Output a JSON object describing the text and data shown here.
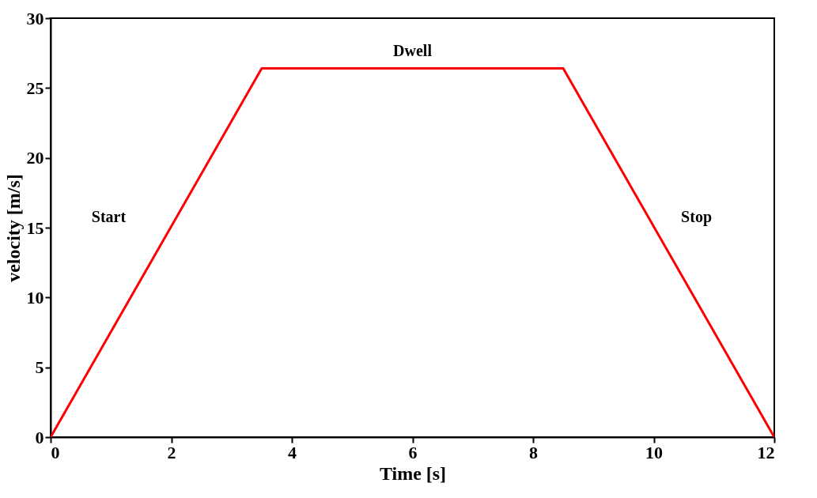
{
  "chart_data": {
    "type": "line",
    "xlabel": "Time  [s]",
    "ylabel": "velocity  [m/s]",
    "x": [
      0,
      3.5,
      8.5,
      12
    ],
    "series": [
      {
        "color": "#ff0000",
        "values": [
          0,
          26.4,
          26.4,
          0
        ]
      }
    ],
    "xlim": [
      0,
      12
    ],
    "xticks": [
      0,
      2,
      4,
      6,
      8,
      10,
      12
    ],
    "ylim": [
      0,
      30
    ],
    "yticks": [
      0,
      5,
      10,
      15,
      20,
      25,
      30
    ],
    "grid": false,
    "marker": "none",
    "line_style": "solid",
    "annotations": [
      "Start",
      "Dwell",
      "Stop"
    ]
  }
}
